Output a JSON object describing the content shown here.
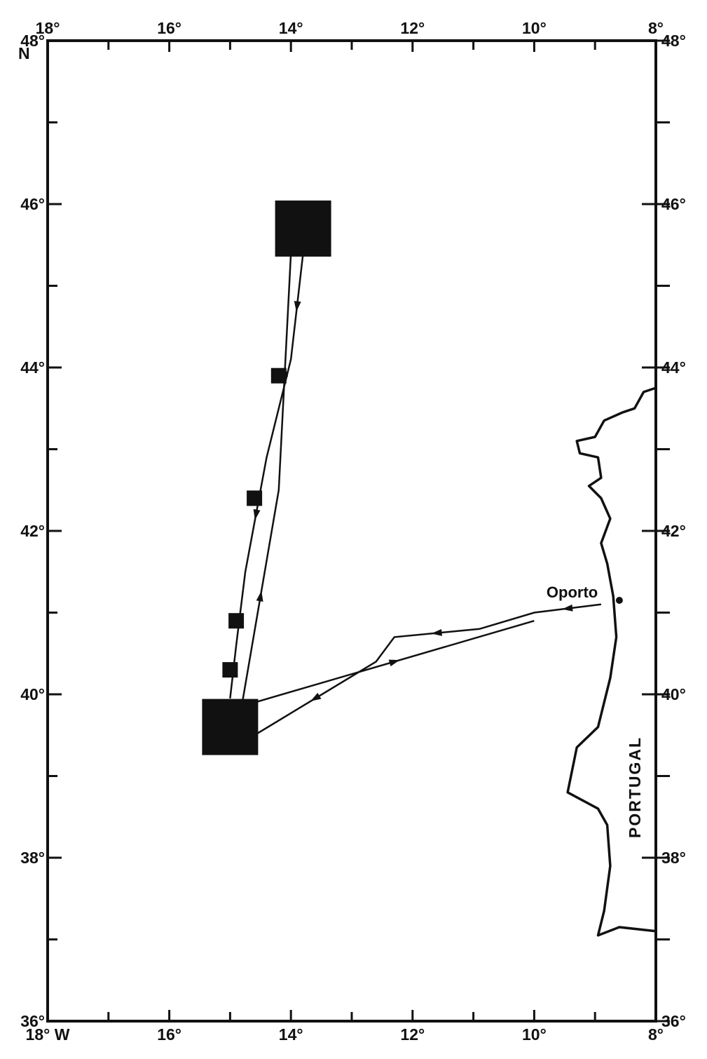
{
  "map": {
    "lon_range": [
      -18,
      -8
    ],
    "lat_range": [
      36,
      48
    ],
    "lon_ticks": [
      {
        "value": -18,
        "top": "18°",
        "bottom": "18° W"
      },
      {
        "value": -16,
        "top": "16°",
        "bottom": "16°"
      },
      {
        "value": -14,
        "top": "14°",
        "bottom": "14°"
      },
      {
        "value": -12,
        "top": "12°",
        "bottom": "12°"
      },
      {
        "value": -10,
        "top": "10°",
        "bottom": "10°"
      },
      {
        "value": -8,
        "top": "8°",
        "bottom": "8°"
      }
    ],
    "lon_minor_ticks": [
      -17,
      -15,
      -13,
      -11,
      -9
    ],
    "lat_ticks": [
      {
        "value": 48,
        "left": "48°",
        "right": "48°"
      },
      {
        "value": 46,
        "left": "46°",
        "right": "46°"
      },
      {
        "value": 44,
        "left": "44°",
        "right": "44°"
      },
      {
        "value": 42,
        "left": "42°",
        "right": "42°"
      },
      {
        "value": 40,
        "left": "40°",
        "right": "40°"
      },
      {
        "value": 38,
        "left": "38°",
        "right": "38°"
      },
      {
        "value": 36,
        "left": "36°",
        "right": "36°"
      }
    ],
    "lat_minor_ticks": [
      47,
      45,
      43,
      41,
      39,
      37
    ],
    "north_label": "N",
    "country_label": "PORTUGAL",
    "port": {
      "name": "Oporto",
      "lon": -8.6,
      "lat": 41.15
    },
    "coastline": [
      [
        -8.0,
        43.75
      ],
      [
        -8.2,
        43.7
      ],
      [
        -8.35,
        43.5
      ],
      [
        -8.55,
        43.45
      ],
      [
        -8.85,
        43.35
      ],
      [
        -9.0,
        43.15
      ],
      [
        -9.3,
        43.1
      ],
      [
        -9.25,
        42.95
      ],
      [
        -8.95,
        42.9
      ],
      [
        -8.9,
        42.65
      ],
      [
        -9.1,
        42.55
      ],
      [
        -8.9,
        42.4
      ],
      [
        -8.75,
        42.15
      ],
      [
        -8.9,
        41.85
      ],
      [
        -8.8,
        41.6
      ],
      [
        -8.7,
        41.2
      ],
      [
        -8.65,
        40.7
      ],
      [
        -8.75,
        40.2
      ],
      [
        -8.95,
        39.6
      ],
      [
        -9.3,
        39.35
      ],
      [
        -9.45,
        38.8
      ],
      [
        -9.2,
        38.7
      ],
      [
        -8.95,
        38.6
      ],
      [
        -8.8,
        38.4
      ],
      [
        -8.75,
        37.9
      ],
      [
        -8.85,
        37.35
      ],
      [
        -8.95,
        37.05
      ],
      [
        -8.6,
        37.15
      ],
      [
        -8.0,
        37.1
      ]
    ],
    "stations": [
      {
        "lon": -13.8,
        "lat": 45.7,
        "size": "large"
      },
      {
        "lon": -14.2,
        "lat": 43.9,
        "size": "small"
      },
      {
        "lon": -14.6,
        "lat": 42.4,
        "size": "small"
      },
      {
        "lon": -14.9,
        "lat": 40.9,
        "size": "small"
      },
      {
        "lon": -15.0,
        "lat": 40.3,
        "size": "small"
      },
      {
        "lon": -15.0,
        "lat": 39.6,
        "size": "large"
      }
    ],
    "tracks": [
      {
        "points": [
          [
            -8.9,
            41.1
          ],
          [
            -10.0,
            41.0
          ],
          [
            -10.9,
            40.8
          ],
          [
            -12.3,
            40.7
          ],
          [
            -12.6,
            40.4
          ],
          [
            -14.6,
            39.5
          ]
        ],
        "arrows": [
          1,
          3,
          5
        ]
      },
      {
        "points": [
          [
            -14.6,
            39.9
          ],
          [
            -10.0,
            40.9
          ]
        ],
        "arrows": [
          1
        ]
      },
      {
        "points": [
          [
            -14.8,
            39.9
          ],
          [
            -14.2,
            42.5
          ],
          [
            -14.0,
            45.4
          ]
        ],
        "arrows": [
          1,
          2
        ]
      },
      {
        "points": [
          [
            -13.8,
            45.4
          ],
          [
            -14.0,
            44.1
          ],
          [
            -14.4,
            42.9
          ],
          [
            -14.75,
            41.5
          ],
          [
            -14.9,
            40.6
          ],
          [
            -15.0,
            39.95
          ]
        ],
        "arrows": [
          1,
          3,
          5
        ]
      }
    ]
  }
}
